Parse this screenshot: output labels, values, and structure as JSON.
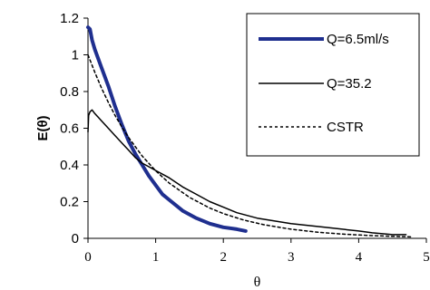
{
  "chart_data": {
    "type": "line",
    "xlabel": "θ",
    "ylabel": "E(θ)",
    "xlim": [
      0,
      5
    ],
    "ylim": [
      0,
      1.2
    ],
    "xticks": [
      "0",
      "1",
      "2",
      "3",
      "4",
      "5"
    ],
    "yticks": [
      "0",
      "0.2",
      "0.4",
      "0.6",
      "0.8",
      "1",
      "1.2"
    ],
    "grid": false,
    "legend_position": "top-right",
    "series": [
      {
        "name": "Q=6.5ml/s",
        "style": "thick-solid",
        "color": "#1f2f8f",
        "x": [
          0.0,
          0.03,
          0.06,
          0.1,
          0.15,
          0.2,
          0.3,
          0.4,
          0.5,
          0.6,
          0.7,
          0.8,
          0.9,
          1.0,
          1.1,
          1.2,
          1.4,
          1.6,
          1.8,
          2.0,
          2.2,
          2.33
        ],
        "y": [
          1.15,
          1.14,
          1.08,
          1.03,
          0.98,
          0.93,
          0.83,
          0.72,
          0.62,
          0.53,
          0.46,
          0.4,
          0.34,
          0.29,
          0.24,
          0.21,
          0.15,
          0.11,
          0.08,
          0.06,
          0.05,
          0.04
        ]
      },
      {
        "name": "Q=35.2",
        "style": "thin-solid",
        "color": "#000000",
        "x": [
          0.0,
          0.01,
          0.03,
          0.06,
          0.1,
          0.15,
          0.2,
          0.3,
          0.4,
          0.5,
          0.6,
          0.7,
          0.8,
          0.9,
          1.0,
          1.2,
          1.4,
          1.6,
          1.8,
          2.0,
          2.2,
          2.5,
          3.0,
          3.5,
          4.0,
          4.2,
          4.5,
          4.7
        ],
        "y": [
          0.58,
          0.67,
          0.69,
          0.7,
          0.68,
          0.66,
          0.64,
          0.6,
          0.56,
          0.52,
          0.48,
          0.44,
          0.41,
          0.39,
          0.37,
          0.33,
          0.28,
          0.24,
          0.2,
          0.17,
          0.14,
          0.11,
          0.08,
          0.06,
          0.04,
          0.03,
          0.02,
          0.02
        ]
      },
      {
        "name": "CSTR",
        "style": "dashed",
        "color": "#000000",
        "x": [
          0.0,
          0.1,
          0.2,
          0.3,
          0.4,
          0.5,
          0.6,
          0.8,
          1.0,
          1.2,
          1.5,
          1.8,
          2.0,
          2.3,
          2.6,
          3.0,
          3.4,
          3.8,
          4.2,
          4.6,
          4.8
        ],
        "y": [
          1.0,
          0.905,
          0.819,
          0.741,
          0.67,
          0.607,
          0.549,
          0.449,
          0.368,
          0.301,
          0.223,
          0.165,
          0.135,
          0.1,
          0.074,
          0.05,
          0.033,
          0.022,
          0.015,
          0.01,
          0.008
        ]
      }
    ]
  }
}
